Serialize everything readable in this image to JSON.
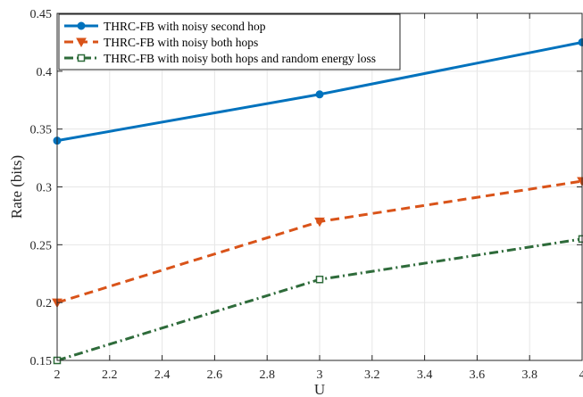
{
  "chart_data": {
    "type": "line",
    "title": "",
    "xlabel": "U",
    "ylabel": "Rate (bits)",
    "x": [
      2,
      3,
      4
    ],
    "xlim": [
      2,
      4
    ],
    "ylim": [
      0.15,
      0.45
    ],
    "xticks": [
      "2",
      "2.2",
      "2.4",
      "2.6",
      "2.8",
      "3",
      "3.2",
      "3.4",
      "3.6",
      "3.8",
      "4"
    ],
    "yticks": [
      "0.15",
      "0.2",
      "0.25",
      "0.3",
      "0.35",
      "0.4",
      "0.45"
    ],
    "grid": true,
    "legend_position": "top-left",
    "series": [
      {
        "name": "THRC-FB with noisy second hop",
        "values": [
          0.34,
          0.38,
          0.425
        ],
        "color": "#0072BD",
        "line_style": "solid",
        "marker": "circle"
      },
      {
        "name": "THRC-FB with noisy both hops",
        "values": [
          0.2,
          0.27,
          0.305
        ],
        "color": "#D95319",
        "line_style": "dashed",
        "marker": "triangle-down"
      },
      {
        "name": "THRC-FB with noisy both hops and random energy loss",
        "values": [
          0.15,
          0.22,
          0.255
        ],
        "color": "#2E6B3A",
        "line_style": "dash-dot",
        "marker": "square"
      }
    ]
  }
}
